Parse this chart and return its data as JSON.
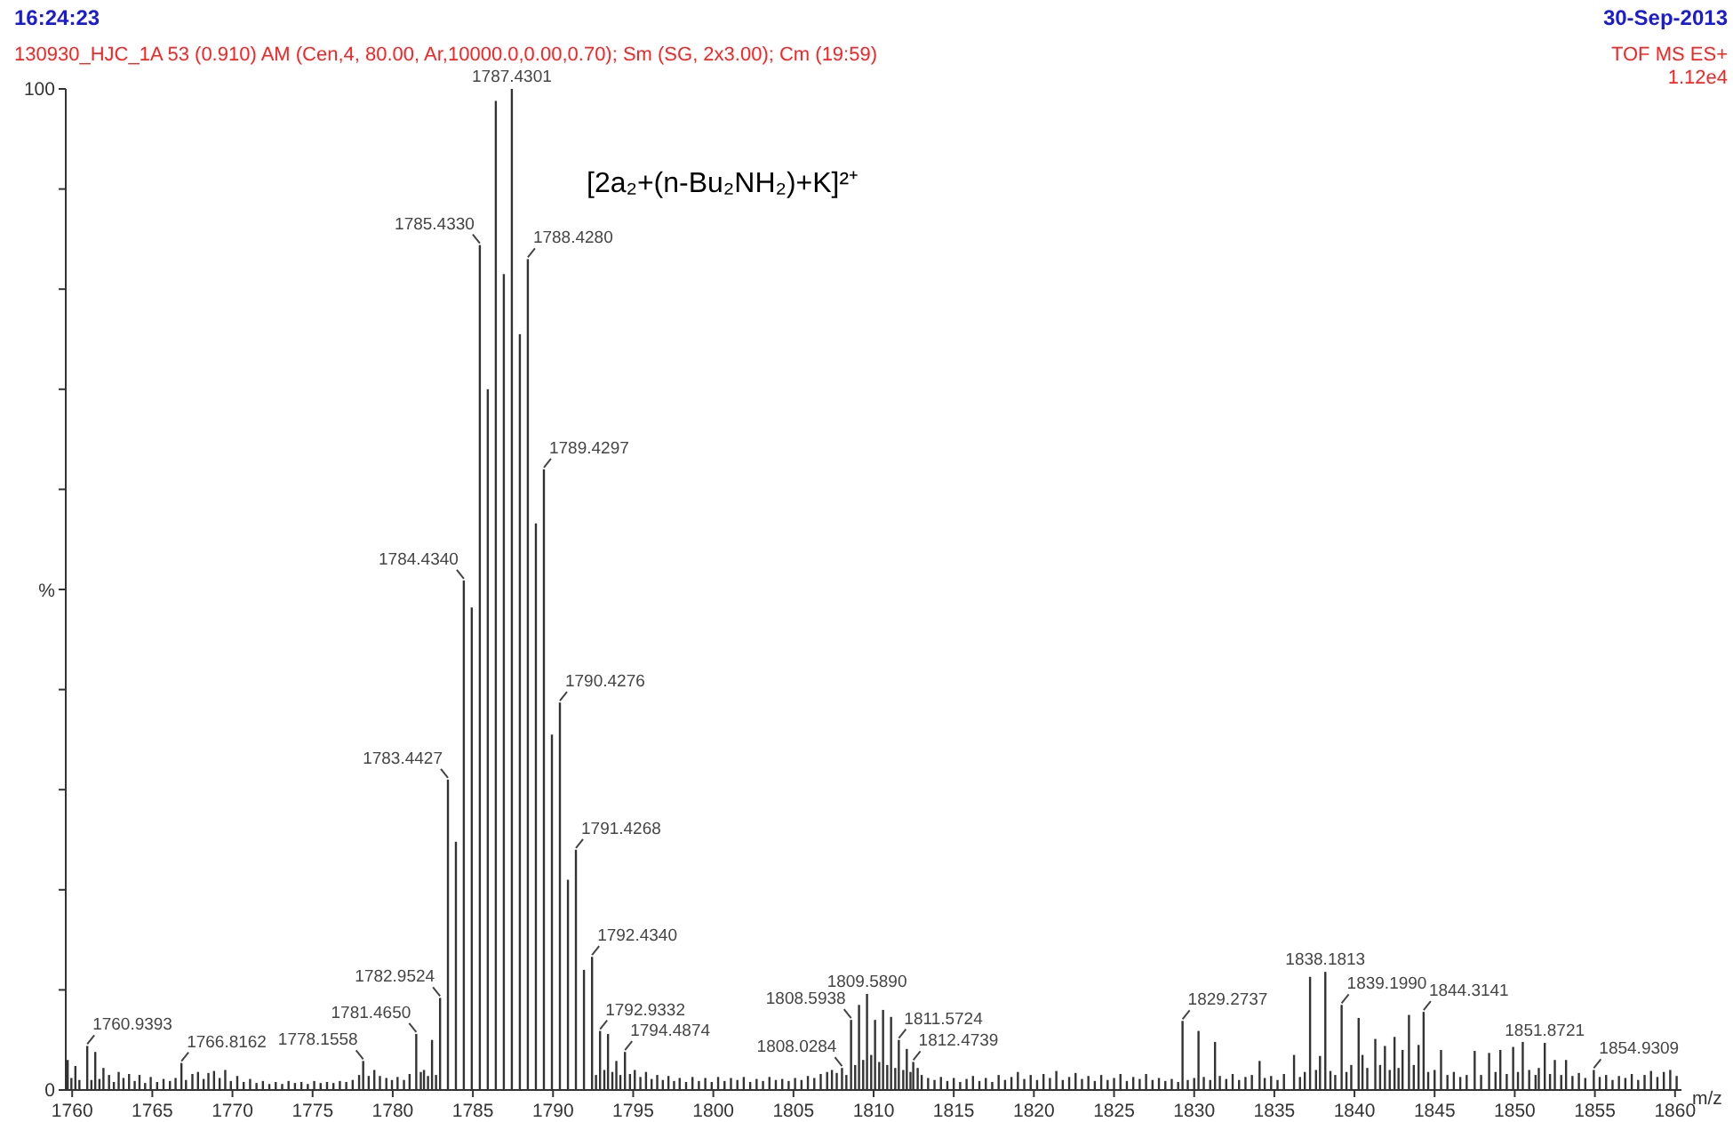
{
  "chart_data": {
    "type": "bar",
    "title": "[2a₂+(n-Bu₂NH₂)+K]²⁺",
    "subtitle": "130930_HJC_1A 53 (0.910) AM (Cen,4, 80.00, Ar,10000.0,0.00,0.70); Sm (SG, 2x3.00); Cm (19:59)",
    "xlabel": "m/z",
    "ylabel": "%",
    "color": "#333333",
    "x": [
      1759.72,
      1759.95,
      1760.2,
      1760.45,
      1760.9393,
      1761.2,
      1761.44,
      1761.7,
      1761.95,
      1762.3,
      1762.6,
      1762.9,
      1763.2,
      1763.55,
      1763.9,
      1764.2,
      1764.55,
      1764.9,
      1765.3,
      1765.7,
      1766.1,
      1766.45,
      1766.8162,
      1767.1,
      1767.5,
      1767.85,
      1768.2,
      1768.5,
      1768.85,
      1769.2,
      1769.55,
      1769.9,
      1770.3,
      1770.7,
      1771.1,
      1771.5,
      1771.9,
      1772.3,
      1772.7,
      1773.1,
      1773.5,
      1773.9,
      1774.3,
      1774.7,
      1775.1,
      1775.5,
      1775.9,
      1776.3,
      1776.7,
      1777.1,
      1777.5,
      1777.9,
      1778.1558,
      1778.5,
      1778.85,
      1779.2,
      1779.6,
      1779.95,
      1780.3,
      1780.7,
      1781.05,
      1781.465,
      1781.75,
      1781.95,
      1782.2,
      1782.45,
      1782.7,
      1782.9524,
      1783.4427,
      1783.94,
      1784.434,
      1784.93,
      1785.433,
      1785.93,
      1786.43,
      1786.93,
      1787.4301,
      1787.93,
      1788.428,
      1788.93,
      1789.4297,
      1789.93,
      1790.4276,
      1790.93,
      1791.4268,
      1791.93,
      1792.434,
      1792.68,
      1792.9332,
      1793.2,
      1793.43,
      1793.7,
      1793.95,
      1794.2,
      1794.4874,
      1794.8,
      1795.1,
      1795.45,
      1795.8,
      1796.15,
      1796.5,
      1796.85,
      1797.2,
      1797.55,
      1797.9,
      1798.3,
      1798.7,
      1799.1,
      1799.5,
      1799.9,
      1800.3,
      1800.7,
      1801.1,
      1801.5,
      1801.9,
      1802.3,
      1802.7,
      1803.1,
      1803.5,
      1803.9,
      1804.3,
      1804.7,
      1805.1,
      1805.5,
      1805.9,
      1806.3,
      1806.7,
      1807.1,
      1807.4,
      1807.7,
      1808.0284,
      1808.3,
      1808.5938,
      1808.85,
      1809.09,
      1809.35,
      1809.589,
      1809.85,
      1810.09,
      1810.35,
      1810.59,
      1810.85,
      1811.09,
      1811.35,
      1811.5724,
      1811.85,
      1812.07,
      1812.3,
      1812.4739,
      1812.75,
      1813.0,
      1813.4,
      1813.8,
      1814.2,
      1814.6,
      1815.0,
      1815.4,
      1815.8,
      1816.2,
      1816.6,
      1817.0,
      1817.4,
      1817.8,
      1818.2,
      1818.6,
      1819.0,
      1819.4,
      1819.8,
      1820.2,
      1820.6,
      1821.0,
      1821.4,
      1821.8,
      1822.2,
      1822.6,
      1823.0,
      1823.4,
      1823.8,
      1824.2,
      1824.6,
      1825.0,
      1825.4,
      1825.8,
      1826.2,
      1826.6,
      1827.0,
      1827.4,
      1827.8,
      1828.2,
      1828.6,
      1829.0,
      1829.2737,
      1829.6,
      1830.0,
      1830.27,
      1830.6,
      1831.0,
      1831.3,
      1831.6,
      1832.0,
      1832.4,
      1832.8,
      1833.2,
      1833.6,
      1834.08,
      1834.4,
      1834.8,
      1835.2,
      1835.6,
      1836.23,
      1836.6,
      1836.9,
      1837.23,
      1837.6,
      1837.85,
      1838.1813,
      1838.5,
      1838.8,
      1839.199,
      1839.5,
      1839.8,
      1840.26,
      1840.5,
      1840.8,
      1841.3,
      1841.6,
      1841.9,
      1842.2,
      1842.5,
      1842.75,
      1843.0,
      1843.4,
      1843.7,
      1844.0,
      1844.3141,
      1844.6,
      1845.0,
      1845.4,
      1845.8,
      1846.2,
      1846.6,
      1847.0,
      1847.5,
      1847.9,
      1848.4,
      1848.8,
      1849.1,
      1849.5,
      1849.9,
      1850.2,
      1850.5,
      1850.9,
      1851.3,
      1851.5,
      1851.8721,
      1852.2,
      1852.5,
      1852.9,
      1853.2,
      1853.6,
      1854.0,
      1854.4,
      1854.9309,
      1855.3,
      1855.7,
      1856.1,
      1856.5,
      1856.9,
      1857.3,
      1857.7,
      1858.1,
      1858.5,
      1858.9,
      1859.3,
      1859.7,
      1860.1
    ],
    "values": [
      3.0,
      1.2,
      2.4,
      1.0,
      4.4,
      1.0,
      3.8,
      1.1,
      2.2,
      1.5,
      0.8,
      1.8,
      1.2,
      1.6,
      0.9,
      1.5,
      0.7,
      1.3,
      0.8,
      1.1,
      0.9,
      1.2,
      2.7,
      1.0,
      1.6,
      1.8,
      1.1,
      1.7,
      1.9,
      1.2,
      2.0,
      0.9,
      1.4,
      0.8,
      1.1,
      0.7,
      0.9,
      0.6,
      0.8,
      0.6,
      0.9,
      0.7,
      0.8,
      0.6,
      0.9,
      0.7,
      0.8,
      0.7,
      0.9,
      0.8,
      1.0,
      1.5,
      2.9,
      1.4,
      2.0,
      1.4,
      1.2,
      1.0,
      1.3,
      1.0,
      1.6,
      5.6,
      1.8,
      2.0,
      1.4,
      5.0,
      1.5,
      9.2,
      31.0,
      24.8,
      50.9,
      48.2,
      84.4,
      70.0,
      98.8,
      81.5,
      100,
      75.5,
      83.0,
      56.6,
      62.0,
      35.5,
      38.7,
      21.0,
      24.0,
      12.0,
      13.3,
      1.5,
      5.9,
      2.0,
      5.6,
      1.8,
      2.9,
      1.5,
      3.8,
      1.6,
      2.0,
      1.3,
      1.8,
      1.1,
      1.5,
      1.0,
      1.4,
      0.9,
      1.2,
      0.8,
      1.3,
      0.9,
      1.2,
      0.8,
      1.3,
      0.9,
      1.2,
      1.0,
      1.3,
      0.8,
      1.1,
      0.9,
      1.3,
      1.0,
      1.1,
      0.9,
      1.2,
      1.0,
      1.4,
      1.2,
      1.6,
      1.8,
      2.0,
      1.7,
      2.2,
      1.5,
      7.0,
      2.5,
      8.5,
      3.0,
      9.6,
      3.5,
      7.0,
      2.8,
      8.0,
      2.5,
      7.3,
      2.2,
      5.0,
      2.0,
      4.1,
      1.8,
      2.8,
      2.2,
      1.5,
      1.2,
      1.0,
      1.3,
      0.9,
      1.2,
      0.8,
      1.1,
      1.4,
      0.9,
      1.2,
      0.8,
      1.5,
      1.0,
      1.3,
      1.8,
      1.1,
      1.5,
      1.0,
      1.6,
      1.2,
      1.9,
      1.0,
      1.3,
      1.7,
      1.1,
      1.4,
      0.9,
      1.5,
      1.0,
      1.2,
      1.6,
      0.9,
      1.3,
      1.1,
      1.6,
      1.0,
      1.2,
      0.9,
      1.1,
      0.8,
      6.9,
      1.0,
      1.2,
      5.9,
      1.3,
      1.0,
      4.8,
      1.4,
      1.1,
      1.6,
      1.0,
      1.3,
      1.5,
      2.9,
      1.2,
      1.4,
      1.0,
      1.6,
      3.5,
      1.3,
      1.8,
      11.3,
      2.0,
      3.4,
      11.8,
      1.9,
      1.5,
      8.5,
      1.8,
      2.5,
      7.2,
      3.5,
      2.2,
      5.1,
      2.5,
      4.4,
      2.0,
      5.3,
      2.2,
      4.0,
      7.5,
      2.5,
      4.5,
      7.8,
      1.8,
      2.0,
      4.0,
      1.5,
      1.8,
      1.3,
      1.5,
      3.9,
      1.5,
      3.7,
      1.8,
      4.0,
      1.6,
      4.3,
      1.8,
      4.8,
      2.0,
      1.5,
      2.2,
      4.7,
      1.6,
      3.0,
      1.5,
      3.0,
      1.4,
      1.7,
      1.2,
      2.0,
      1.3,
      1.5,
      1.0,
      1.4,
      1.2,
      1.6,
      1.0,
      1.5,
      1.9,
      1.3,
      1.8,
      2.0,
      1.4
    ],
    "xlim": [
      1759.6,
      1860.4
    ],
    "xticks": [
      1760,
      1765,
      1770,
      1775,
      1780,
      1785,
      1790,
      1795,
      1800,
      1805,
      1810,
      1815,
      1820,
      1825,
      1830,
      1835,
      1840,
      1845,
      1850,
      1855,
      1860
    ],
    "ylim": [
      0,
      100
    ],
    "yticks": [
      0,
      {
        "value": 10,
        "label": null
      },
      {
        "value": 20,
        "label": null
      },
      {
        "value": 30,
        "label": null
      },
      {
        "value": 40,
        "label": null
      },
      {
        "value": 50,
        "label": null
      },
      {
        "value": 60,
        "label": null
      },
      {
        "value": 70,
        "label": null
      },
      {
        "value": 80,
        "label": null
      },
      {
        "value": 90,
        "label": null
      },
      100
    ],
    "annotations": [
      "16:24:23",
      "30-Sep-2013",
      "TOF MS ES+",
      "1.12e4",
      {
        "text": "1760.9393",
        "x": 1760.9393,
        "y": 4.4
      },
      {
        "text": "1766.8162",
        "x": 1766.8162,
        "y": 2.7
      },
      {
        "text": "1778.1558",
        "x": 1778.1558,
        "y": 2.9
      },
      {
        "text": "1781.4650",
        "x": 1781.465,
        "y": 5.6
      },
      {
        "text": "1782.9524",
        "x": 1782.9524,
        "y": 9.2
      },
      {
        "text": "1783.4427",
        "x": 1783.4427,
        "y": 31.0
      },
      {
        "text": "1784.4340",
        "x": 1784.434,
        "y": 50.9
      },
      {
        "text": "1785.4330",
        "x": 1785.433,
        "y": 84.4
      },
      {
        "text": "1787.4301",
        "x": 1787.4301,
        "y": 100
      },
      {
        "text": "1788.4280",
        "x": 1788.428,
        "y": 83.0
      },
      {
        "text": "1789.4297",
        "x": 1789.4297,
        "y": 62.0
      },
      {
        "text": "1790.4276",
        "x": 1790.4276,
        "y": 38.7
      },
      {
        "text": "1791.4268",
        "x": 1791.4268,
        "y": 24.0
      },
      {
        "text": "1792.4340",
        "x": 1792.434,
        "y": 13.3
      },
      {
        "text": "1792.9332",
        "x": 1792.9332,
        "y": 5.9
      },
      {
        "text": "1794.4874",
        "x": 1794.4874,
        "y": 3.8
      },
      {
        "text": "1808.0284",
        "x": 1808.0284,
        "y": 2.2
      },
      {
        "text": "1808.5938",
        "x": 1808.5938,
        "y": 7.0
      },
      {
        "text": "1809.5890",
        "x": 1809.589,
        "y": 9.6
      },
      {
        "text": "1811.5724",
        "x": 1811.5724,
        "y": 5.0
      },
      {
        "text": "1812.4739",
        "x": 1812.4739,
        "y": 2.8
      },
      {
        "text": "1829.2737",
        "x": 1829.2737,
        "y": 6.9
      },
      {
        "text": "1838.1813",
        "x": 1838.1813,
        "y": 11.8
      },
      {
        "text": "1839.1990",
        "x": 1839.199,
        "y": 8.5
      },
      {
        "text": "1844.3141",
        "x": 1844.3141,
        "y": 7.8
      },
      {
        "text": "1851.8721",
        "x": 1851.8721,
        "y": 4.7
      },
      {
        "text": "1854.9309",
        "x": 1854.9309,
        "y": 2.0
      }
    ]
  }
}
